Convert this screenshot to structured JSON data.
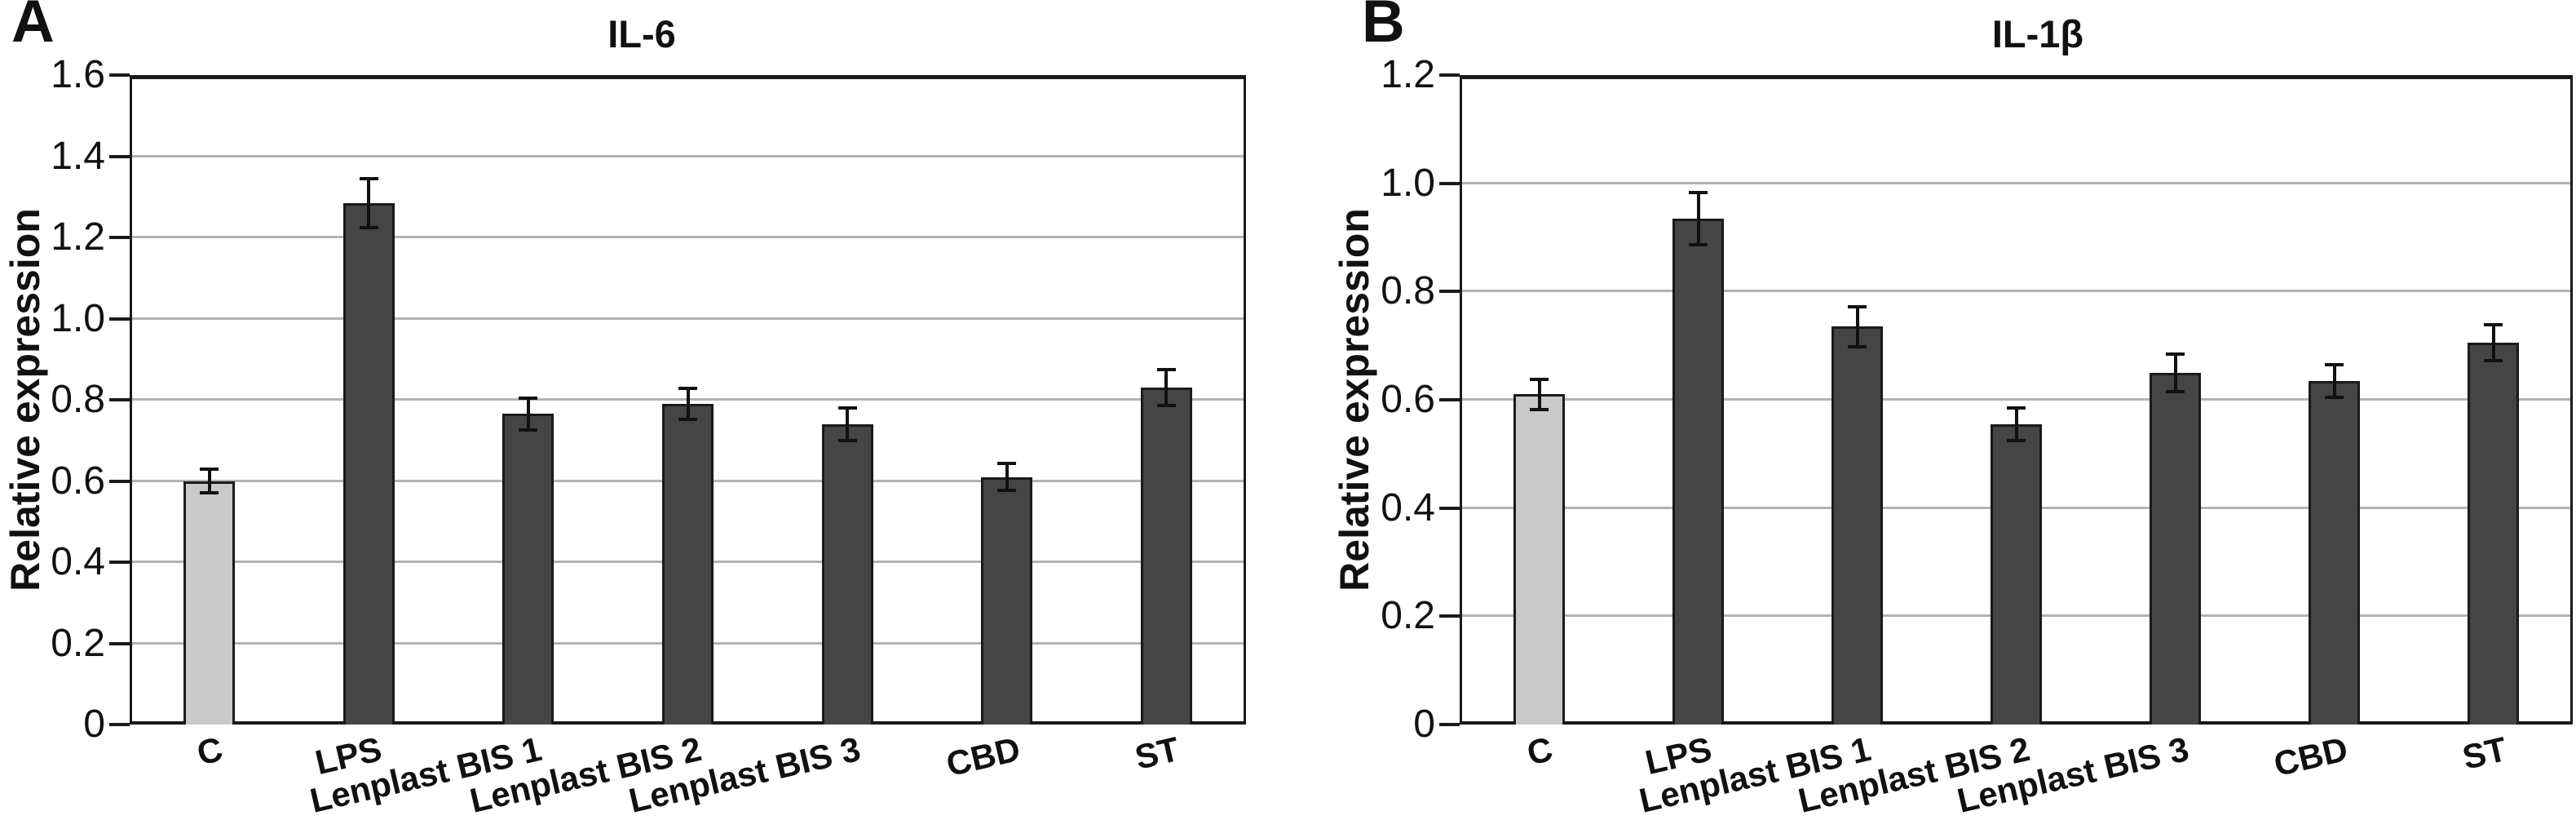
{
  "colors": {
    "background": "#ffffff",
    "axis": "#1a1a1a",
    "gridline": "#b3b3b3",
    "text": "#111111",
    "dark_bar": "#454545",
    "light_bar": "#c9c9c9",
    "error_bar": "#111111"
  },
  "chart_data": [
    {
      "type": "bar",
      "panel_letter": "A",
      "title": "IL-6",
      "ylabel": "Relative expression",
      "xlabel": "",
      "categories": [
        "C",
        "LPS",
        "Lenplast BIS 1",
        "Lenplast BIS 2",
        "Lenplast BIS 3",
        "CBD",
        "ST"
      ],
      "values": [
        0.6,
        1.285,
        0.765,
        0.79,
        0.74,
        0.61,
        0.83
      ],
      "errors": [
        0.03,
        0.06,
        0.04,
        0.038,
        0.04,
        0.033,
        0.045
      ],
      "bar_colors": [
        "#c9c9c9",
        "#454545",
        "#454545",
        "#454545",
        "#454545",
        "#454545",
        "#454545"
      ],
      "ylim": [
        0,
        1.6
      ],
      "ystep": 0.2,
      "ytick_labels": [
        "0",
        "0.2",
        "0.4",
        "0.6",
        "0.8",
        "1.0",
        "1.2",
        "1.4",
        "1.6"
      ],
      "grid": true,
      "legend": null
    },
    {
      "type": "bar",
      "panel_letter": "B",
      "title": "IL-1β",
      "ylabel": "Relative expression",
      "xlabel": "",
      "categories": [
        "C",
        "LPS",
        "Lenplast BIS 1",
        "Lenplast BIS 2",
        "Lenplast BIS 3",
        "CBD",
        "ST"
      ],
      "values": [
        0.61,
        0.935,
        0.735,
        0.555,
        0.65,
        0.635,
        0.705
      ],
      "errors": [
        0.028,
        0.048,
        0.037,
        0.03,
        0.035,
        0.03,
        0.033
      ],
      "bar_colors": [
        "#c9c9c9",
        "#454545",
        "#454545",
        "#454545",
        "#454545",
        "#454545",
        "#454545"
      ],
      "ylim": [
        0,
        1.2
      ],
      "ystep": 0.2,
      "ytick_labels": [
        "0",
        "0.2",
        "0.4",
        "0.6",
        "0.8",
        "1.0",
        "1.2"
      ],
      "grid": true,
      "legend": null
    }
  ]
}
